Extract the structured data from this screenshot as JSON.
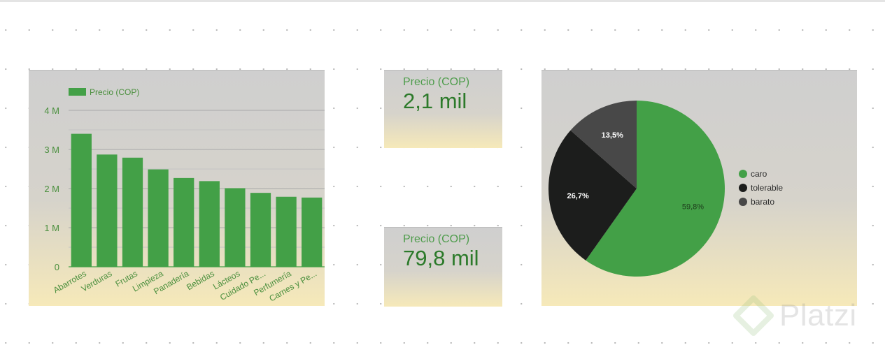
{
  "colors": {
    "green": "#43a047",
    "black": "#1c1d1c",
    "gray": "#484848",
    "axis_text": "#4a8f3d"
  },
  "chart_data": [
    {
      "type": "bar",
      "legend": {
        "entries": [
          "Precio (COP)"
        ],
        "placement": "top-left"
      },
      "series": [
        {
          "name": "Precio (COP)",
          "values": [
            3400000,
            2870000,
            2790000,
            2490000,
            2270000,
            2190000,
            2010000,
            1890000,
            1790000,
            1770000
          ]
        }
      ],
      "categories": [
        "Abarrotes",
        "Verduras",
        "Frutas",
        "Limpieza",
        "Panadería",
        "Bebidas",
        "Lácteos",
        "Cuidado Pe...",
        "Perfumería",
        "Carnes y Pe..."
      ],
      "yticks": [
        "0",
        "1 M",
        "2 M",
        "3 M",
        "4 M"
      ],
      "ylim": [
        0,
        4000000
      ],
      "grid": true
    },
    {
      "type": "pie",
      "legend": {
        "entries": [
          "caro",
          "tolerable",
          "barato"
        ],
        "placement": "right"
      },
      "slices": [
        {
          "label": "caro",
          "value": 59.8,
          "text": "59,8%",
          "color": "#43a047"
        },
        {
          "label": "tolerable",
          "value": 26.7,
          "text": "26,7%",
          "color": "#1c1d1c"
        },
        {
          "label": "barato",
          "value": 13.5,
          "text": "13,5%",
          "color": "#484848"
        }
      ]
    }
  ],
  "scorecards": [
    {
      "label": "Precio (COP)",
      "value": "2,1 mil"
    },
    {
      "label": "Precio (COP)",
      "value": "79,8 mil"
    }
  ],
  "watermark": {
    "text": "Platzi",
    "icon": "platzi-logo-icon"
  }
}
